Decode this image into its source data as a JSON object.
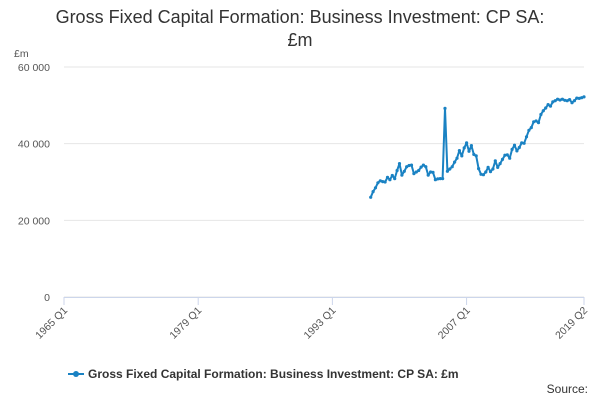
{
  "title_line1": "Gross Fixed Capital Formation: Business Investment: CP SA:",
  "title_line2": "£m",
  "source_label": "Source:",
  "colors": {
    "series": "#1a82c3",
    "grid": "#e6e6e6",
    "axis": "#ccd6eb"
  },
  "chart_data": {
    "type": "line",
    "title": "Gross Fixed Capital Formation: Business Investment: CP SA: £m",
    "ylabel": "£m",
    "ylim": [
      0,
      60000
    ],
    "y_ticks": [
      0,
      20000,
      40000,
      60000
    ],
    "y_tick_labels": [
      "0",
      "20 000",
      "40 000",
      "60 000"
    ],
    "x_tick_labels": [
      "1965 Q1",
      "1979 Q1",
      "1993 Q1",
      "2007 Q1",
      "2019 Q2"
    ],
    "x_range": [
      "1965 Q1",
      "2019 Q2"
    ],
    "legend_position": "bottom",
    "grid": true,
    "series": [
      {
        "name": "Gross Fixed Capital Formation: Business Investment: CP SA: £m",
        "x": [
          "1997 Q1",
          "1997 Q2",
          "1997 Q3",
          "1997 Q4",
          "1998 Q1",
          "1998 Q2",
          "1998 Q3",
          "1998 Q4",
          "1999 Q1",
          "1999 Q2",
          "1999 Q3",
          "1999 Q4",
          "2000 Q1",
          "2000 Q2",
          "2000 Q3",
          "2000 Q4",
          "2001 Q1",
          "2001 Q2",
          "2001 Q3",
          "2001 Q4",
          "2002 Q1",
          "2002 Q2",
          "2002 Q3",
          "2002 Q4",
          "2003 Q1",
          "2003 Q2",
          "2003 Q3",
          "2003 Q4",
          "2004 Q1",
          "2004 Q2",
          "2004 Q3",
          "2004 Q4",
          "2005 Q1",
          "2005 Q2",
          "2005 Q3",
          "2005 Q4",
          "2006 Q1",
          "2006 Q2",
          "2006 Q3",
          "2006 Q4",
          "2007 Q1",
          "2007 Q2",
          "2007 Q3",
          "2007 Q4",
          "2008 Q1",
          "2008 Q2",
          "2008 Q3",
          "2008 Q4",
          "2009 Q1",
          "2009 Q2",
          "2009 Q3",
          "2009 Q4",
          "2010 Q1",
          "2010 Q2",
          "2010 Q3",
          "2010 Q4",
          "2011 Q1",
          "2011 Q2",
          "2011 Q3",
          "2011 Q4",
          "2012 Q1",
          "2012 Q2",
          "2012 Q3",
          "2012 Q4",
          "2013 Q1",
          "2013 Q2",
          "2013 Q3",
          "2013 Q4",
          "2014 Q1",
          "2014 Q2",
          "2014 Q3",
          "2014 Q4",
          "2015 Q1",
          "2015 Q2",
          "2015 Q3",
          "2015 Q4",
          "2016 Q1",
          "2016 Q2",
          "2016 Q3",
          "2016 Q4",
          "2017 Q1",
          "2017 Q2",
          "2017 Q3",
          "2017 Q4",
          "2018 Q1",
          "2018 Q2",
          "2018 Q3",
          "2018 Q4",
          "2019 Q1",
          "2019 Q2"
        ],
        "y": [
          26000,
          27500,
          28500,
          29800,
          30300,
          30100,
          30000,
          31200,
          30600,
          31700,
          30900,
          33000,
          34800,
          31800,
          32800,
          34000,
          34300,
          34400,
          32200,
          32600,
          33000,
          33900,
          34400,
          34000,
          31800,
          32600,
          32500,
          30600,
          30800,
          30900,
          30900,
          49200,
          32800,
          33400,
          34000,
          35200,
          36200,
          38200,
          36800,
          38900,
          40200,
          38000,
          39500,
          37200,
          36800,
          33500,
          32000,
          31900,
          32600,
          33800,
          32700,
          33400,
          35500,
          33800,
          34800,
          35900,
          37000,
          37100,
          36200,
          38500,
          39600,
          38100,
          39000,
          40200,
          40100,
          41800,
          43500,
          44200,
          45700,
          45900,
          45500,
          47600,
          48600,
          49300,
          50200,
          49800,
          50900,
          51200,
          51600,
          51400,
          51600,
          51300,
          51200,
          51500,
          50700,
          51200,
          51900,
          51800,
          52000,
          52200
        ]
      }
    ]
  }
}
